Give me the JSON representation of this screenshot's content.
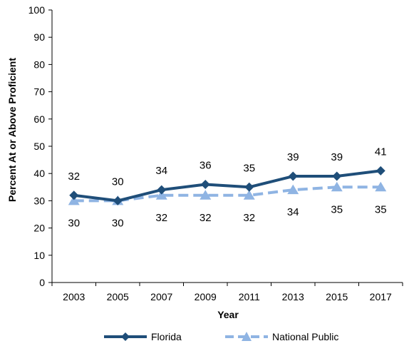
{
  "chart_data": {
    "type": "line",
    "title": "",
    "xlabel": "Year",
    "ylabel": "Percent At or Above Proficient",
    "ylim": [
      0,
      100
    ],
    "yticks": [
      0,
      10,
      20,
      30,
      40,
      50,
      60,
      70,
      80,
      90,
      100
    ],
    "categories": [
      "2003",
      "2005",
      "2007",
      "2009",
      "2011",
      "2013",
      "2015",
      "2017"
    ],
    "grid": false,
    "legend_position": "bottom",
    "series": [
      {
        "name": "Florida",
        "values": [
          32,
          30,
          34,
          36,
          35,
          39,
          39,
          41
        ],
        "color": "#1f4e79",
        "line_style": "solid",
        "marker": "diamond",
        "label_position": "above"
      },
      {
        "name": "National Public",
        "values": [
          30,
          30,
          32,
          32,
          32,
          34,
          35,
          35
        ],
        "color": "#8fb4e3",
        "line_style": "dashed",
        "marker": "triangle",
        "label_position": "below"
      }
    ]
  }
}
